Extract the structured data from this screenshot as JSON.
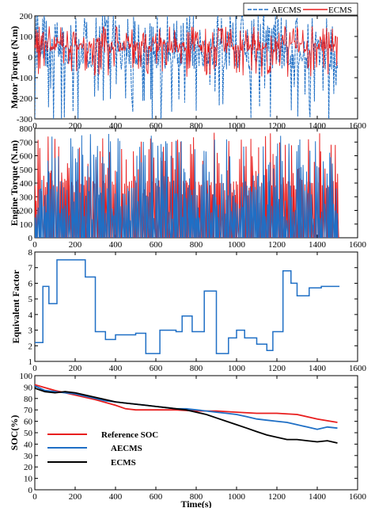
{
  "chart_data": [
    {
      "type": "line",
      "title": "",
      "xlabel": "",
      "ylabel": "Motor Torque (N.m)",
      "xlim": [
        0,
        1600
      ],
      "ylim": [
        -300,
        200
      ],
      "xticks": [
        0,
        200,
        400,
        600,
        800,
        1000,
        1200,
        1400,
        1600
      ],
      "yticks": [
        -300,
        -200,
        -100,
        0,
        100,
        200
      ],
      "grid": false,
      "legend_position": "top-right",
      "series": [
        {
          "name": "AECMS",
          "color": "#1f6fc5",
          "style": "dashed",
          "y_range_estimate": [
            -330,
            210
          ]
        },
        {
          "name": "ECMS",
          "color": "#e81e1e",
          "style": "solid",
          "y_range_estimate": [
            -100,
            150
          ]
        }
      ],
      "x_extent": [
        0,
        1500
      ],
      "note": "high-frequency torque trace"
    },
    {
      "type": "line",
      "title": "",
      "xlabel": "",
      "ylabel": "Engine Torque (N.m)",
      "xlim": [
        0,
        1600
      ],
      "ylim": [
        0,
        800
      ],
      "xticks": [
        0,
        200,
        400,
        600,
        800,
        1000,
        1200,
        1400,
        1600
      ],
      "yticks": [
        0,
        100,
        200,
        300,
        400,
        500,
        600,
        700,
        800
      ],
      "grid": false,
      "series": [
        {
          "name": "",
          "color": "#e81e1e",
          "y_range_estimate": [
            0,
            780
          ]
        },
        {
          "name": "",
          "color": "#1f6fc5",
          "y_range_estimate": [
            0,
            780
          ]
        }
      ],
      "x_extent": [
        0,
        1500
      ]
    },
    {
      "type": "line",
      "title": "",
      "xlabel": "",
      "ylabel": "Equivalent Factor",
      "xlim": [
        0,
        1600
      ],
      "ylim": [
        1,
        8
      ],
      "xticks": [
        0,
        200,
        400,
        600,
        800,
        1000,
        1200,
        1400,
        1600
      ],
      "yticks": [
        1,
        2,
        3,
        4,
        5,
        6,
        7,
        8
      ],
      "grid": false,
      "series": [
        {
          "name": "",
          "color": "#1f6fc5",
          "step": true,
          "x": [
            0,
            40,
            40,
            70,
            70,
            110,
            110,
            210,
            210,
            250,
            250,
            300,
            300,
            350,
            350,
            400,
            400,
            450,
            450,
            500,
            500,
            550,
            550,
            620,
            620,
            700,
            700,
            730,
            730,
            780,
            780,
            840,
            840,
            900,
            900,
            960,
            960,
            1000,
            1000,
            1040,
            1040,
            1100,
            1100,
            1150,
            1150,
            1180,
            1180,
            1230,
            1230,
            1270,
            1270,
            1300,
            1300,
            1360,
            1360,
            1420,
            1420,
            1450,
            1450,
            1510
          ],
          "y": [
            2.2,
            2.2,
            5.8,
            5.8,
            4.7,
            4.7,
            7.5,
            7.5,
            7.5,
            7.5,
            6.4,
            6.4,
            2.9,
            2.9,
            2.4,
            2.4,
            2.7,
            2.7,
            2.7,
            2.7,
            2.8,
            2.8,
            1.5,
            1.5,
            3.0,
            3.0,
            2.9,
            2.9,
            3.9,
            3.9,
            2.9,
            2.9,
            5.5,
            5.5,
            1.5,
            1.5,
            2.5,
            2.5,
            3.0,
            3.0,
            2.5,
            2.5,
            2.1,
            2.1,
            1.7,
            1.7,
            2.9,
            2.9,
            6.8,
            6.8,
            6.0,
            6.0,
            5.2,
            5.2,
            5.7,
            5.7,
            5.8,
            5.8,
            5.8,
            5.8
          ]
        }
      ]
    },
    {
      "type": "line",
      "title": "",
      "xlabel": "Time(s)",
      "ylabel": "SOC(%)",
      "xlim": [
        0,
        1600
      ],
      "ylim": [
        0,
        100
      ],
      "xticks": [
        0,
        200,
        400,
        600,
        800,
        1000,
        1200,
        1400,
        1600
      ],
      "yticks": [
        0,
        10,
        20,
        30,
        40,
        50,
        60,
        70,
        80,
        90,
        100
      ],
      "grid": false,
      "legend_position": "center-left",
      "series": [
        {
          "name": "Reference SOC",
          "color": "#e81e1e",
          "x": [
            0,
            100,
            200,
            300,
            400,
            450,
            500,
            600,
            700,
            800,
            900,
            1000,
            1100,
            1200,
            1300,
            1400,
            1500
          ],
          "y": [
            92,
            87,
            83,
            79,
            74,
            71,
            70,
            70,
            70,
            69,
            69,
            68,
            67,
            67,
            66,
            62,
            59
          ]
        },
        {
          "name": "AECMS",
          "color": "#1f6fc5",
          "x": [
            0,
            50,
            100,
            150,
            200,
            250,
            300,
            350,
            400,
            450,
            500,
            550,
            600,
            650,
            700,
            750,
            800,
            850,
            900,
            950,
            1000,
            1050,
            1100,
            1150,
            1200,
            1250,
            1300,
            1350,
            1400,
            1450,
            1500
          ],
          "y": [
            91,
            87,
            86,
            85,
            84,
            82,
            80,
            78,
            77,
            76,
            75,
            74,
            73,
            72,
            71,
            71,
            70,
            69,
            68,
            67,
            66,
            64,
            62,
            61,
            60,
            59,
            57,
            55,
            53,
            55,
            54
          ]
        },
        {
          "name": "ECMS",
          "color": "#000000",
          "x": [
            0,
            50,
            100,
            150,
            200,
            250,
            300,
            350,
            400,
            450,
            500,
            550,
            600,
            650,
            700,
            750,
            800,
            850,
            900,
            950,
            1000,
            1050,
            1100,
            1150,
            1200,
            1250,
            1300,
            1350,
            1400,
            1450,
            1500
          ],
          "y": [
            89,
            86,
            85,
            86,
            85,
            83,
            81,
            79,
            77,
            76,
            75,
            74,
            73,
            72,
            71,
            70,
            68,
            66,
            63,
            60,
            57,
            54,
            51,
            48,
            46,
            44,
            44,
            43,
            42,
            43,
            41
          ]
        }
      ]
    }
  ]
}
